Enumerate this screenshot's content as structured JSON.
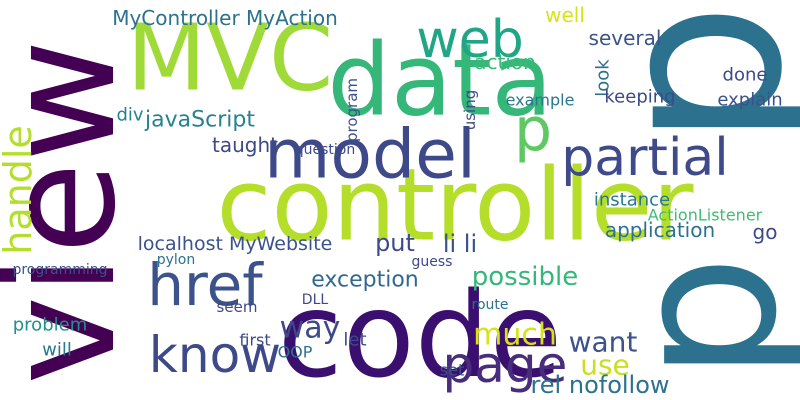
{
  "words": [
    {
      "text": "view",
      "color": "#440154"
    },
    {
      "text": "controller",
      "color": "#b5de2b"
    },
    {
      "text": "code",
      "color": "#3b0f70"
    },
    {
      "text": "p",
      "color": "#2c728e"
    },
    {
      "text": "p",
      "color": "#2c728e"
    },
    {
      "text": "data",
      "color": "#35b779"
    },
    {
      "text": "MVC",
      "color": "#a0da39"
    },
    {
      "text": "model",
      "color": "#3e4989"
    },
    {
      "text": "partial",
      "color": "#3e4a89"
    },
    {
      "text": "web",
      "color": "#21a685"
    },
    {
      "text": "handle",
      "color": "#b5de2b"
    },
    {
      "text": "href",
      "color": "#3b528b"
    },
    {
      "text": "know",
      "color": "#3e4989"
    },
    {
      "text": "page",
      "color": "#472d7b"
    },
    {
      "text": "p",
      "color": "#5ec962"
    },
    {
      "text": "use",
      "color": "#c8e020"
    },
    {
      "text": "much",
      "color": "#d8e219"
    },
    {
      "text": "want",
      "color": "#3b528b"
    },
    {
      "text": "possible",
      "color": "#35b779"
    },
    {
      "text": "exception",
      "color": "#31688e"
    },
    {
      "text": "way",
      "color": "#3e4989"
    },
    {
      "text": "localhost MyWebsite",
      "color": "#3b528b"
    },
    {
      "text": "put",
      "color": "#3e4989"
    },
    {
      "text": "li li",
      "color": "#3b528b"
    },
    {
      "text": "javaScript",
      "color": "#26828e"
    },
    {
      "text": "MyController MyAction",
      "color": "#2c728e"
    },
    {
      "text": "action",
      "color": "#3aba76"
    },
    {
      "text": "well",
      "color": "#d8e219"
    },
    {
      "text": "several",
      "color": "#3b528b"
    },
    {
      "text": "application",
      "color": "#2c728e"
    },
    {
      "text": "ActionListener",
      "color": "#40bd72"
    },
    {
      "text": "instance",
      "color": "#2a788e"
    },
    {
      "text": "look",
      "color": "#2c728e"
    },
    {
      "text": "done",
      "color": "#3e4989"
    },
    {
      "text": "explain",
      "color": "#3b528b"
    },
    {
      "text": "keeping",
      "color": "#3e4989"
    },
    {
      "text": "example",
      "color": "#2a788e"
    },
    {
      "text": "taught",
      "color": "#3e4989"
    },
    {
      "text": "div",
      "color": "#26828e"
    },
    {
      "text": "problem",
      "color": "#21918c"
    },
    {
      "text": "will",
      "color": "#2a788e"
    },
    {
      "text": "rel nofollow",
      "color": "#2c728e"
    },
    {
      "text": "let",
      "color": "#3e4989"
    },
    {
      "text": "first",
      "color": "#3e4989"
    },
    {
      "text": "OOP",
      "color": "#2c728e"
    },
    {
      "text": "program",
      "color": "#3b528b"
    },
    {
      "text": "programming",
      "color": "#3b528b"
    },
    {
      "text": "question",
      "color": "#3e4989"
    },
    {
      "text": "using",
      "color": "#3e4989"
    },
    {
      "text": "DLL",
      "color": "#3e4989"
    },
    {
      "text": "go",
      "color": "#3e4989"
    },
    {
      "text": "set",
      "color": "#3b528b"
    },
    {
      "text": "seem",
      "color": "#3e4989"
    },
    {
      "text": "pylon",
      "color": "#2c728e"
    },
    {
      "text": "guess",
      "color": "#3e4989"
    },
    {
      "text": "route",
      "color": "#2c728e"
    }
  ]
}
